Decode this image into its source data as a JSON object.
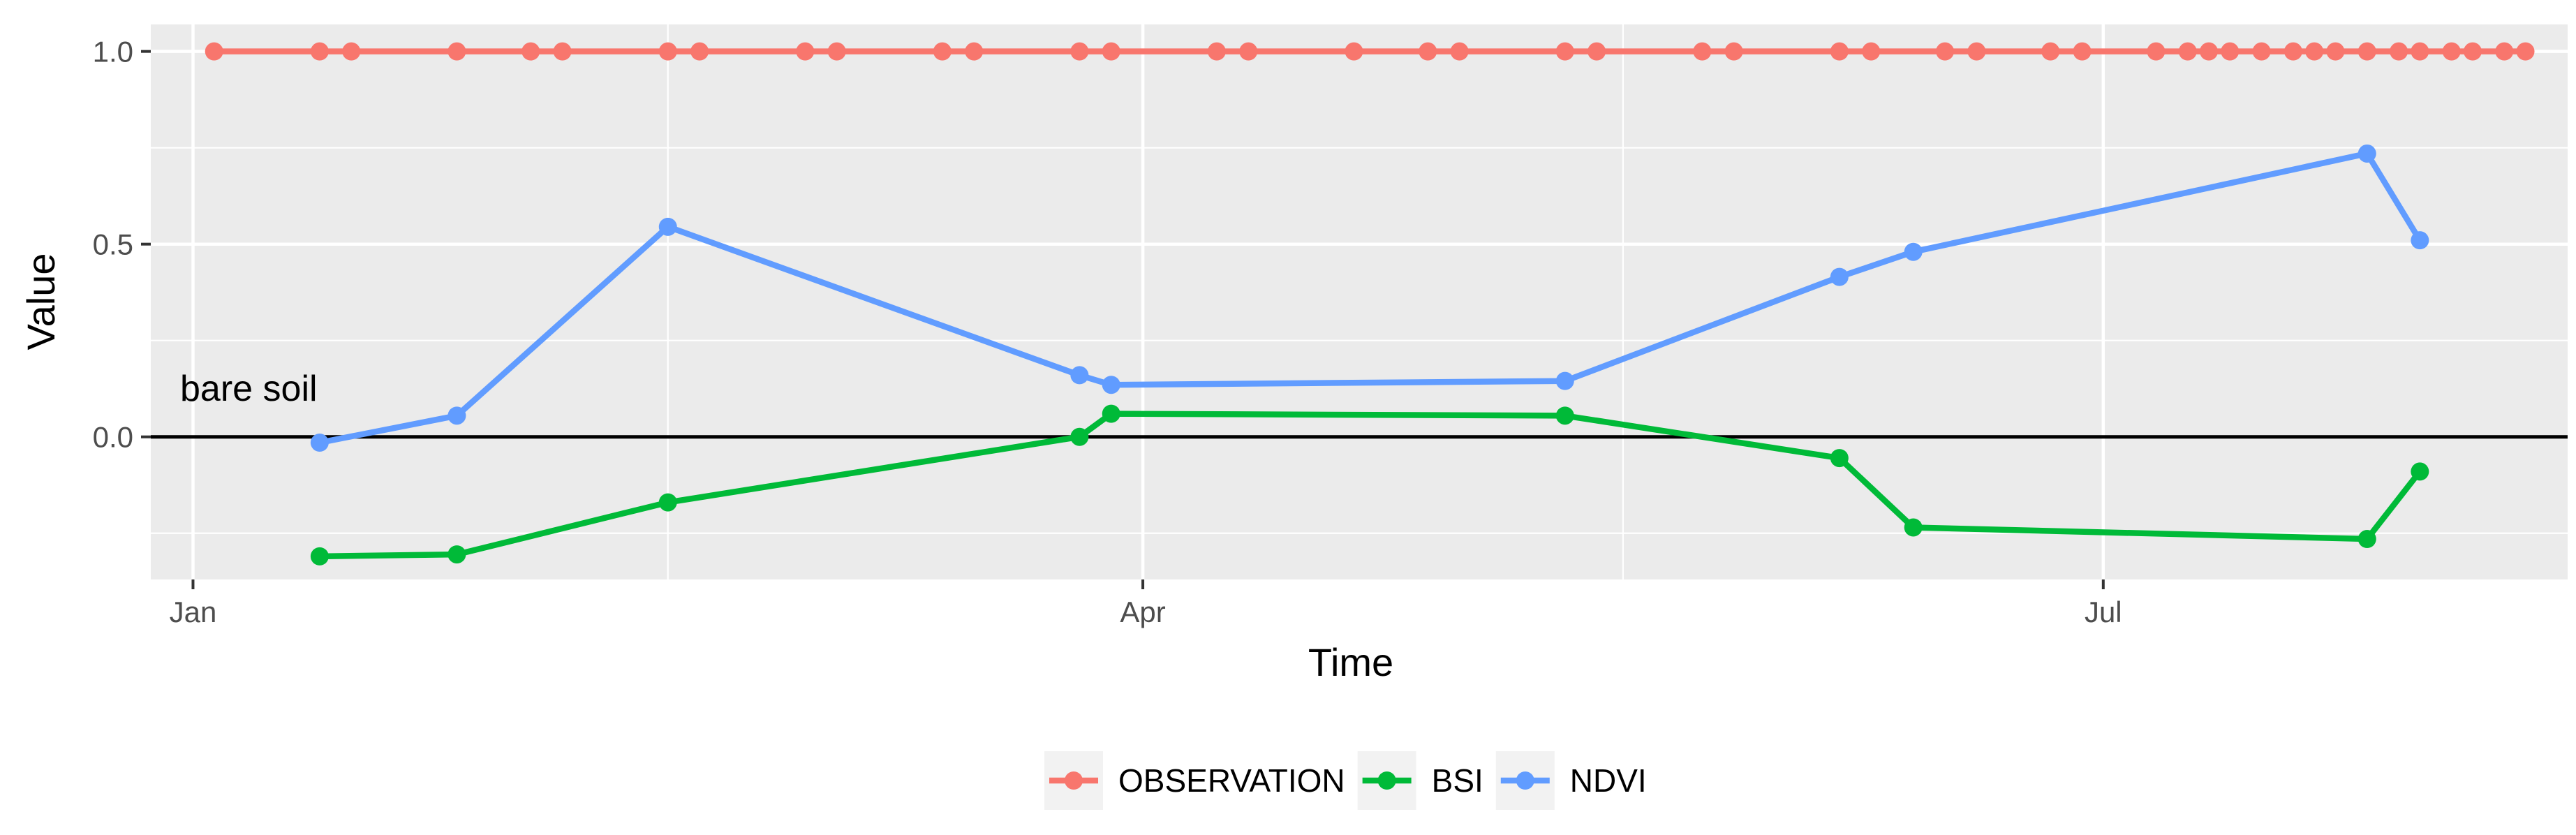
{
  "chart_data": {
    "type": "line",
    "title": "",
    "xlabel": "Time",
    "ylabel": "Value",
    "x_axis_type": "date",
    "xlim": [
      "2017-12-28",
      "2018-08-14"
    ],
    "ylim": [
      -0.37,
      1.07
    ],
    "x_ticks": [
      {
        "date": "2018-01-01",
        "label": "Jan"
      },
      {
        "date": "2018-04-01",
        "label": "Apr"
      },
      {
        "date": "2018-07-01",
        "label": "Jul"
      }
    ],
    "y_ticks": [
      {
        "value": 0.0,
        "label": "0.0"
      },
      {
        "value": 0.5,
        "label": "0.5"
      },
      {
        "value": 1.0,
        "label": "1.0"
      }
    ],
    "grid": true,
    "legend_position": "bottom",
    "reference_line": {
      "y": 0.0,
      "label": "bare soil"
    },
    "series": [
      {
        "name": "OBSERVATION",
        "color": "#F8766D",
        "x": [
          "2018-01-03",
          "2018-01-13",
          "2018-01-16",
          "2018-01-26",
          "2018-02-02",
          "2018-02-05",
          "2018-02-15",
          "2018-02-18",
          "2018-02-28",
          "2018-03-03",
          "2018-03-13",
          "2018-03-16",
          "2018-03-26",
          "2018-03-29",
          "2018-04-08",
          "2018-04-11",
          "2018-04-21",
          "2018-04-28",
          "2018-05-01",
          "2018-05-11",
          "2018-05-14",
          "2018-05-24",
          "2018-05-27",
          "2018-06-06",
          "2018-06-09",
          "2018-06-16",
          "2018-06-19",
          "2018-06-26",
          "2018-06-29",
          "2018-07-06",
          "2018-07-09",
          "2018-07-11",
          "2018-07-13",
          "2018-07-16",
          "2018-07-19",
          "2018-07-21",
          "2018-07-23",
          "2018-07-26",
          "2018-07-29",
          "2018-07-31",
          "2018-08-03",
          "2018-08-05",
          "2018-08-08",
          "2018-08-10"
        ],
        "y": [
          1,
          1,
          1,
          1,
          1,
          1,
          1,
          1,
          1,
          1,
          1,
          1,
          1,
          1,
          1,
          1,
          1,
          1,
          1,
          1,
          1,
          1,
          1,
          1,
          1,
          1,
          1,
          1,
          1,
          1,
          1,
          1,
          1,
          1,
          1,
          1,
          1,
          1,
          1,
          1,
          1,
          1,
          1,
          1
        ]
      },
      {
        "name": "BSI",
        "color": "#00BA38",
        "x": [
          "2018-01-13",
          "2018-01-26",
          "2018-02-15",
          "2018-03-26",
          "2018-03-29",
          "2018-05-11",
          "2018-06-06",
          "2018-06-13",
          "2018-07-26",
          "2018-07-31"
        ],
        "y": [
          -0.31,
          -0.305,
          -0.17,
          0.0,
          0.06,
          0.055,
          -0.055,
          -0.235,
          -0.265,
          -0.09
        ]
      },
      {
        "name": "NDVI",
        "color": "#619CFF",
        "x": [
          "2018-01-13",
          "2018-01-26",
          "2018-02-15",
          "2018-03-26",
          "2018-03-29",
          "2018-05-11",
          "2018-06-06",
          "2018-06-13",
          "2018-07-26",
          "2018-07-31"
        ],
        "y": [
          -0.015,
          0.055,
          0.545,
          0.16,
          0.135,
          0.145,
          0.415,
          0.48,
          0.735,
          0.51
        ]
      }
    ]
  }
}
